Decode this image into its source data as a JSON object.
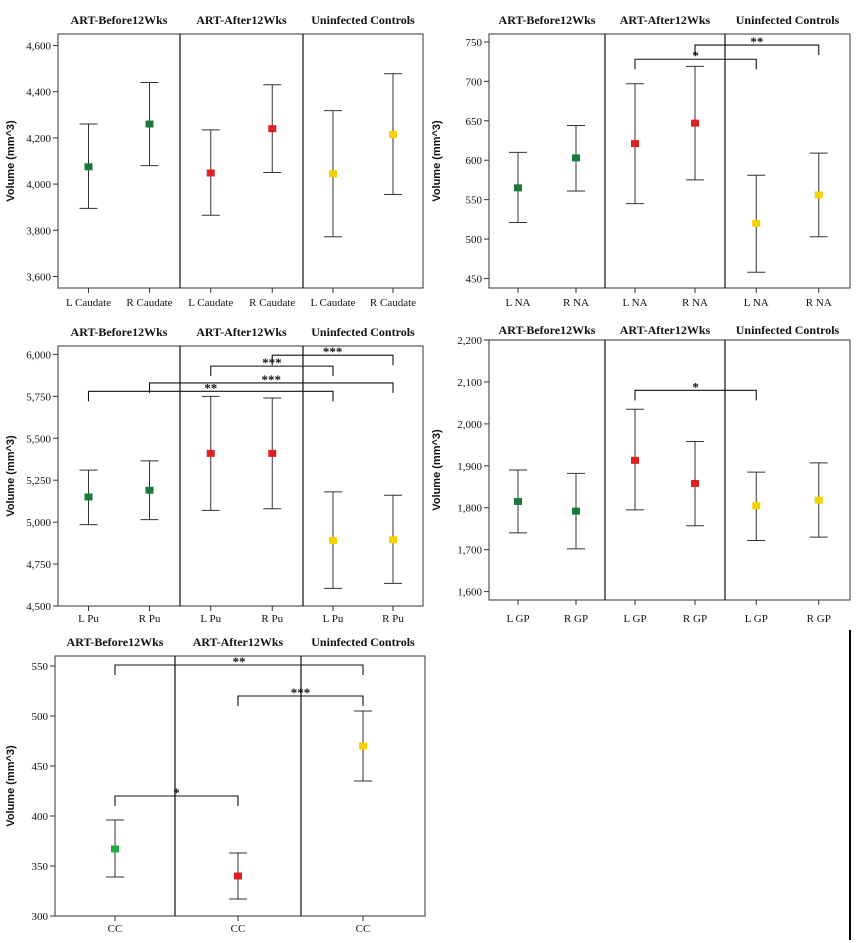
{
  "colors": {
    "before": "#1a7a3c",
    "after": "#e02020",
    "controls": "#f5d200",
    "cc_before": "#22aa44"
  },
  "chart_data": [
    {
      "type": "errorbar",
      "groups": [
        "ART-Before12Wks",
        "ART-After12Wks",
        "Uninfected Controls"
      ],
      "categories": [
        "L Caudate",
        "R Caudate",
        "L Caudate",
        "R Caudate",
        "L Caudate",
        "R Caudate"
      ],
      "ylabel": "Volume (mm^3)",
      "ylim": [
        3550,
        4650
      ],
      "yticks": [
        3600,
        3800,
        4000,
        4200,
        4400,
        4600
      ],
      "yticklabels": [
        "3,600",
        "3,800",
        "4,000",
        "4,200",
        "4,400",
        "4,600"
      ],
      "points": [
        {
          "group": 0,
          "mean": 4075,
          "low": 3895,
          "high": 4260
        },
        {
          "group": 0,
          "mean": 4260,
          "low": 4080,
          "high": 4440
        },
        {
          "group": 1,
          "mean": 4048,
          "low": 3865,
          "high": 4235
        },
        {
          "group": 1,
          "mean": 4240,
          "low": 4050,
          "high": 4430
        },
        {
          "group": 2,
          "mean": 4045,
          "low": 3772,
          "high": 4318
        },
        {
          "group": 2,
          "mean": 4215,
          "low": 3955,
          "high": 4478
        }
      ],
      "brackets": []
    },
    {
      "type": "errorbar",
      "groups": [
        "ART-Before12Wks",
        "ART-After12Wks",
        "Uninfected Controls"
      ],
      "categories": [
        "L NA",
        "R NA",
        "L NA",
        "R NA",
        "L NA",
        "R NA"
      ],
      "ylabel": "Volume (mm^3)",
      "ylim": [
        438,
        760
      ],
      "yticks": [
        450,
        500,
        550,
        600,
        650,
        700,
        750
      ],
      "yticklabels": [
        "450",
        "500",
        "550",
        "600",
        "650",
        "700",
        "750"
      ],
      "points": [
        {
          "group": 0,
          "mean": 565,
          "low": 521,
          "high": 610
        },
        {
          "group": 0,
          "mean": 603,
          "low": 561,
          "high": 644
        },
        {
          "group": 1,
          "mean": 621,
          "low": 545,
          "high": 697
        },
        {
          "group": 1,
          "mean": 647,
          "low": 575,
          "high": 719
        },
        {
          "group": 2,
          "mean": 520,
          "low": 458,
          "high": 581
        },
        {
          "group": 2,
          "mean": 556,
          "low": 503,
          "high": 609
        }
      ],
      "brackets": [
        {
          "from": 2,
          "to": 4,
          "y": 728,
          "label": "*"
        },
        {
          "from": 3,
          "to": 5,
          "y": 746,
          "label": "**"
        }
      ]
    },
    {
      "type": "errorbar",
      "groups": [
        "ART-Before12Wks",
        "ART-After12Wks",
        "Uninfected Controls"
      ],
      "categories": [
        "L Pu",
        "R Pu",
        "L Pu",
        "R Pu",
        "L Pu",
        "R Pu"
      ],
      "ylabel": "Volume (mm^3)",
      "ylim": [
        4500,
        6050
      ],
      "yticks": [
        4500,
        4750,
        5000,
        5250,
        5500,
        5750,
        6000
      ],
      "yticklabels": [
        "4,500",
        "4,750",
        "5,000",
        "5,250",
        "5,500",
        "5,750",
        "6,000"
      ],
      "points": [
        {
          "group": 0,
          "mean": 5150,
          "low": 4985,
          "high": 5310
        },
        {
          "group": 0,
          "mean": 5190,
          "low": 5015,
          "high": 5365
        },
        {
          "group": 1,
          "mean": 5410,
          "low": 5070,
          "high": 5750
        },
        {
          "group": 1,
          "mean": 5410,
          "low": 5080,
          "high": 5740
        },
        {
          "group": 2,
          "mean": 4890,
          "low": 4605,
          "high": 5180
        },
        {
          "group": 2,
          "mean": 4895,
          "low": 4635,
          "high": 5160
        }
      ],
      "brackets": [
        {
          "from": 0,
          "to": 4,
          "y": 5780,
          "label": "**"
        },
        {
          "from": 1,
          "to": 5,
          "y": 5830,
          "label": "***"
        },
        {
          "from": 2,
          "to": 4,
          "y": 5930,
          "label": "***"
        },
        {
          "from": 3,
          "to": 5,
          "y": 5995,
          "label": "***"
        }
      ]
    },
    {
      "type": "errorbar",
      "groups": [
        "ART-Before12Wks",
        "ART-After12Wks",
        "Uninfected Controls"
      ],
      "categories": [
        "L GP",
        "R GP",
        "L GP",
        "R GP",
        "L GP",
        "R GP"
      ],
      "ylabel": "Volume (mm^3)",
      "ylim": [
        1580,
        2200
      ],
      "yticks": [
        1600,
        1700,
        1800,
        1900,
        2000,
        2100,
        2200
      ],
      "yticklabels": [
        "1,600",
        "1,700",
        "1,800",
        "1,900",
        "2,000",
        "2,100",
        "2,200"
      ],
      "points": [
        {
          "group": 0,
          "mean": 1815,
          "low": 1740,
          "high": 1890
        },
        {
          "group": 0,
          "mean": 1792,
          "low": 1702,
          "high": 1882
        },
        {
          "group": 1,
          "mean": 1913,
          "low": 1795,
          "high": 2035
        },
        {
          "group": 1,
          "mean": 1858,
          "low": 1757,
          "high": 1958
        },
        {
          "group": 2,
          "mean": 1805,
          "low": 1722,
          "high": 1885
        },
        {
          "group": 2,
          "mean": 1818,
          "low": 1730,
          "high": 1907
        }
      ],
      "brackets": [
        {
          "from": 2,
          "to": 4,
          "y": 2080,
          "label": "*"
        }
      ]
    },
    {
      "type": "errorbar",
      "groups": [
        "ART-Before12Wks",
        "ART-After12Wks",
        "Uninfected Controls"
      ],
      "categories": [
        "CC",
        "CC",
        "CC"
      ],
      "ylabel": "Volume (mm^3)",
      "ylim": [
        300,
        560
      ],
      "yticks": [
        300,
        350,
        400,
        450,
        500,
        550
      ],
      "yticklabels": [
        "300",
        "350",
        "400",
        "450",
        "500",
        "550"
      ],
      "points": [
        {
          "group": 0,
          "mean": 367,
          "low": 339,
          "high": 396
        },
        {
          "group": 1,
          "mean": 340,
          "low": 317,
          "high": 363
        },
        {
          "group": 2,
          "mean": 470,
          "low": 435,
          "high": 505
        }
      ],
      "brackets": [
        {
          "from": 0,
          "to": 1,
          "y": 420,
          "label": "*"
        },
        {
          "from": 0,
          "to": 2,
          "y": 551,
          "label": "**"
        },
        {
          "from": 1,
          "to": 2,
          "y": 520,
          "label": "***"
        }
      ]
    }
  ]
}
